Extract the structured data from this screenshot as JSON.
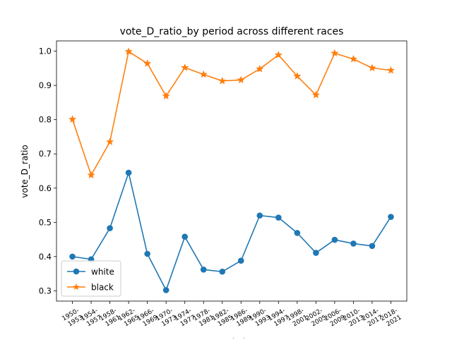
{
  "chart_data": {
    "type": "line",
    "title": "vote_D_ratio_by period across different races",
    "xlabel": "period",
    "ylabel": "vote_D_ratio",
    "categories": [
      "1950-1953",
      "1954-1957",
      "1958-1961",
      "1962-1965",
      "1966-1969",
      "1970-1973",
      "1974-1977",
      "1978-1981",
      "1982-1985",
      "1986-1989",
      "1990-1993",
      "1994-1997",
      "1998-2001",
      "2002-2005",
      "2006-2009",
      "2010-2013",
      "2014-2017",
      "2018-2021"
    ],
    "ylim": [
      0.27,
      1.03
    ],
    "yticks": [
      0.3,
      0.4,
      0.5,
      0.6,
      0.7,
      0.8,
      0.9,
      1.0
    ],
    "ytick_labels": [
      "0.3",
      "0.4",
      "0.5",
      "0.6",
      "0.7",
      "0.8",
      "0.9",
      "1.0"
    ],
    "grid": false,
    "legend_position": "lower-left",
    "series": [
      {
        "name": "white",
        "color": "#1f77b4",
        "marker": "circle",
        "values": [
          0.4,
          0.392,
          0.483,
          0.645,
          0.408,
          0.302,
          0.458,
          0.362,
          0.356,
          0.388,
          0.52,
          0.514,
          0.469,
          0.411,
          0.449,
          0.438,
          0.431,
          0.516
        ]
      },
      {
        "name": "black",
        "color": "#ff7f0e",
        "marker": "star",
        "values": [
          0.801,
          0.638,
          0.735,
          0.999,
          0.964,
          0.869,
          0.952,
          0.932,
          0.913,
          0.916,
          0.948,
          0.989,
          0.927,
          0.872,
          0.994,
          0.977,
          0.951,
          0.944
        ]
      }
    ]
  }
}
